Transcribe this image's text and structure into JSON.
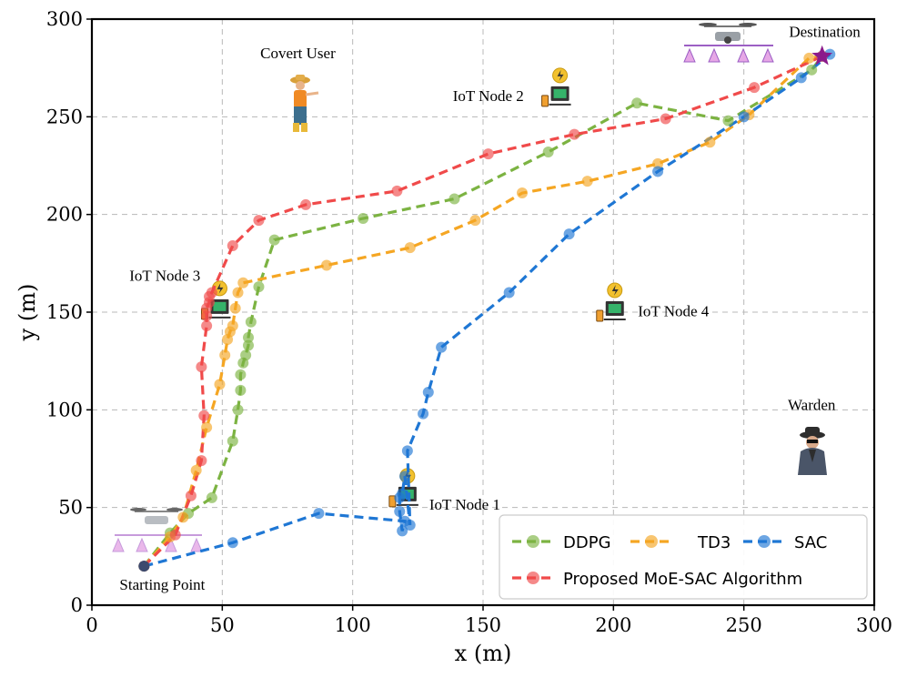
{
  "chart_data": {
    "type": "line",
    "xlabel": "x (m)",
    "ylabel": "y (m)",
    "xlim": [
      0,
      300
    ],
    "ylim": [
      0,
      300
    ],
    "xticks": [
      0,
      50,
      100,
      150,
      200,
      250,
      300
    ],
    "yticks": [
      0,
      50,
      100,
      150,
      200,
      250,
      300
    ],
    "grid": true,
    "legend_position": "bottom-right",
    "series": [
      {
        "name": "DDPG",
        "color": "#7cb342",
        "x": [
          20,
          30,
          37,
          46,
          54,
          56,
          57,
          57,
          58,
          59,
          60,
          60,
          61,
          64,
          70,
          104,
          139,
          175,
          209,
          244,
          276,
          280
        ],
        "y": [
          20,
          37,
          47,
          55,
          84,
          100,
          110,
          118,
          124,
          128,
          133,
          137,
          145,
          163,
          187,
          198,
          208,
          232,
          257,
          248,
          274,
          281
        ]
      },
      {
        "name": "TD3",
        "color": "#f5a623",
        "x": [
          20,
          30,
          35,
          40,
          44,
          49,
          51,
          52,
          53,
          54,
          55,
          56,
          58,
          90,
          122,
          147,
          165,
          190,
          217,
          237,
          252,
          275,
          280
        ],
        "y": [
          20,
          35,
          45,
          69,
          91,
          113,
          128,
          136,
          140,
          143,
          152,
          160,
          165,
          174,
          183,
          197,
          211,
          217,
          226,
          237,
          251,
          280,
          281
        ]
      },
      {
        "name": "SAC",
        "color": "#1f77d4",
        "x": [
          20,
          54,
          87,
          120,
          119,
          118,
          118,
          119,
          120,
          122,
          121,
          127,
          129,
          134,
          160,
          183,
          217,
          250,
          272,
          283,
          280
        ],
        "y": [
          20,
          32,
          47,
          43,
          38,
          48,
          55,
          57,
          66,
          41,
          79,
          98,
          109,
          132,
          160,
          190,
          222,
          250,
          270,
          282,
          281
        ]
      },
      {
        "name": "Proposed MoE-SAC Algorithm",
        "color": "#f04a4a",
        "x": [
          20,
          32,
          38,
          42,
          43,
          42,
          44,
          44,
          44,
          45,
          45,
          46,
          54,
          64,
          82,
          117,
          152,
          185,
          220,
          254,
          280
        ],
        "y": [
          20,
          36,
          56,
          74,
          97,
          122,
          143,
          148,
          152,
          155,
          158,
          160,
          184,
          197,
          205,
          212,
          231,
          241,
          249,
          265,
          281
        ]
      }
    ],
    "annotations": [
      {
        "text": "Covert User",
        "x": 79,
        "y": 280,
        "color": "#000000"
      },
      {
        "text": "IoT Node 2",
        "x": 152,
        "y": 258,
        "color": "#000000"
      },
      {
        "text": "IoT Node 3",
        "x": 28,
        "y": 166,
        "color": "#000000"
      },
      {
        "text": "IoT Node 4",
        "x": 223,
        "y": 148,
        "color": "#000000"
      },
      {
        "text": "IoT Node 1",
        "x": 143,
        "y": 49,
        "color": "#000000"
      },
      {
        "text": "Warden",
        "x": 276,
        "y": 100,
        "color": "#c00000"
      },
      {
        "text": "Destination",
        "x": 281,
        "y": 291,
        "color": "#000000"
      },
      {
        "text": "Starting Point",
        "x": 27,
        "y": 8,
        "color": "#000000"
      }
    ],
    "start_point": {
      "x": 20,
      "y": 20
    },
    "destination": {
      "x": 280,
      "y": 281
    }
  }
}
